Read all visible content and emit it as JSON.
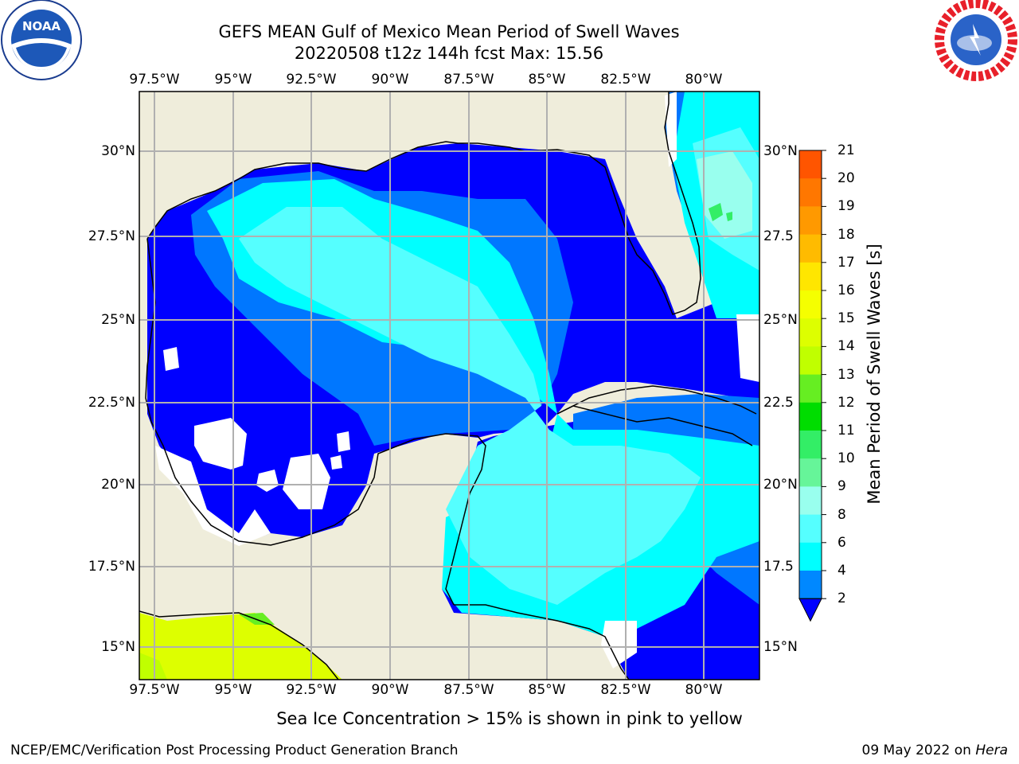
{
  "header": {
    "title_line1": "GEFS MEAN Gulf of Mexico Mean Period of Swell Waves",
    "title_line2": "20220508 t12z 144h fcst   Max: 15.56"
  },
  "logos": {
    "left": "noaa-logo",
    "right": "national-weather-service-logo"
  },
  "map": {
    "lon_labels": [
      "97.5°W",
      "95°W",
      "92.5°W",
      "90°W",
      "87.5°W",
      "85°W",
      "82.5°W",
      "80°W"
    ],
    "lat_labels_left": [
      "30°N",
      "27.5°N",
      "25°N",
      "22.5°N",
      "20°N",
      "17.5°N",
      "15°N"
    ],
    "lat_labels_right": [
      "30°N",
      "27.5",
      "25°N",
      "22.5",
      "20°N",
      "17.5",
      "15°N"
    ],
    "land_color": "#efeddb",
    "gridline_color": "#b0b0b0"
  },
  "colorbar": {
    "title": "Mean Period of Swell Waves [s]",
    "ticks": [
      "21",
      "20",
      "19",
      "18",
      "17",
      "16",
      "15",
      "14",
      "13",
      "12",
      "11",
      "10",
      "9",
      "8",
      "6",
      "4",
      "2"
    ],
    "colors": [
      "#ff0000",
      "#ff3300",
      "#ff5500",
      "#ff7700",
      "#ff9900",
      "#ffbb00",
      "#ffe600",
      "#f5ff00",
      "#ddff00",
      "#c0ff00",
      "#66ee22",
      "#00dd00",
      "#33ee66",
      "#66f599",
      "#99ffee",
      "#55ffff",
      "#00ffff",
      "#0088ff",
      "#0000ff"
    ]
  },
  "footer": {
    "note": "Sea Ice Concentration > 15% is shown in pink to yellow",
    "left": "NCEP/EMC/Verification Post Processing Product Generation Branch",
    "date": "09 May 2022 on",
    "host": "Hera"
  }
}
